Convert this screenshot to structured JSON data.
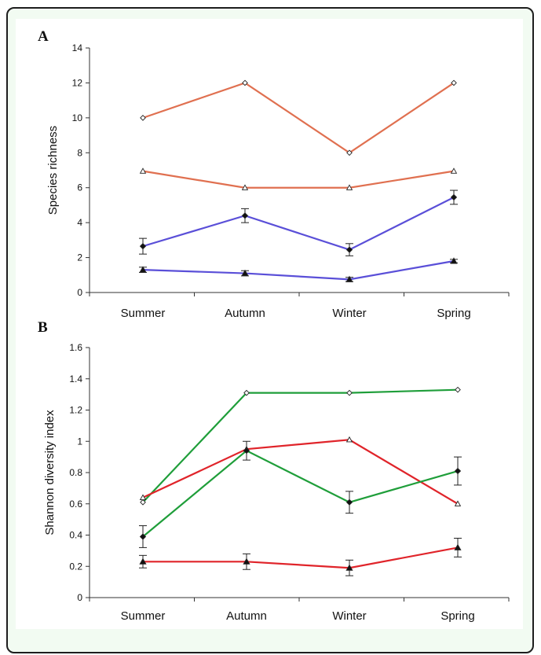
{
  "chart_data": [
    {
      "panel_label": "A",
      "type": "line",
      "categories": [
        "Summer",
        "Autumn",
        "Winter",
        "Spring"
      ],
      "ylabel": "Species richness",
      "xlabel": "",
      "ylim": [
        0,
        14
      ],
      "yticks": [
        "0",
        "2",
        "4",
        "6",
        "8",
        "10",
        "12",
        "14"
      ],
      "ytick_values": [
        0,
        2,
        4,
        6,
        8,
        10,
        12,
        14
      ],
      "grid": false,
      "legend": "none",
      "series": [
        {
          "color": "#e07050",
          "marker": "diamond-open",
          "values": [
            10,
            12,
            8,
            12
          ]
        },
        {
          "color": "#e07050",
          "marker": "triangle-open",
          "values": [
            6.95,
            6.0,
            6.0,
            6.95
          ]
        },
        {
          "color": "#5a4fd8",
          "marker": "diamond-filled",
          "values": [
            2.65,
            4.4,
            2.45,
            5.45
          ],
          "errors": [
            0.45,
            0.4,
            0.35,
            0.4
          ]
        },
        {
          "color": "#5a4fd8",
          "marker": "triangle-filled",
          "values": [
            1.3,
            1.1,
            0.75,
            1.8
          ],
          "errors": [
            0.15,
            0.15,
            0.12,
            0.1
          ]
        }
      ]
    },
    {
      "panel_label": "B",
      "type": "line",
      "categories": [
        "Summer",
        "Autumn",
        "Winter",
        "Spring"
      ],
      "ylabel": "Shannon diversity index",
      "xlabel": "",
      "ylim": [
        0,
        1.6
      ],
      "yticks": [
        "0",
        "0.2",
        "0.4",
        "0.6",
        "0.8",
        "1",
        "1.2",
        "1.4",
        "1.6"
      ],
      "ytick_values": [
        0,
        0.2,
        0.4,
        0.6,
        0.8,
        1.0,
        1.2,
        1.4,
        1.6
      ],
      "grid": false,
      "legend": "none",
      "series": [
        {
          "color": "#1f9e3a",
          "marker": "diamond-open",
          "values": [
            0.61,
            1.31,
            1.31,
            1.33
          ]
        },
        {
          "color": "#e0242a",
          "marker": "triangle-open",
          "values": [
            0.64,
            0.95,
            1.01,
            0.6
          ]
        },
        {
          "color": "#1f9e3a",
          "marker": "diamond-filled",
          "values": [
            0.39,
            0.94,
            0.61,
            0.81
          ],
          "errors": [
            0.07,
            0.06,
            0.07,
            0.09
          ]
        },
        {
          "color": "#e0242a",
          "marker": "triangle-filled",
          "values": [
            0.23,
            0.23,
            0.19,
            0.32
          ],
          "errors": [
            0.04,
            0.05,
            0.05,
            0.06
          ]
        }
      ]
    }
  ]
}
